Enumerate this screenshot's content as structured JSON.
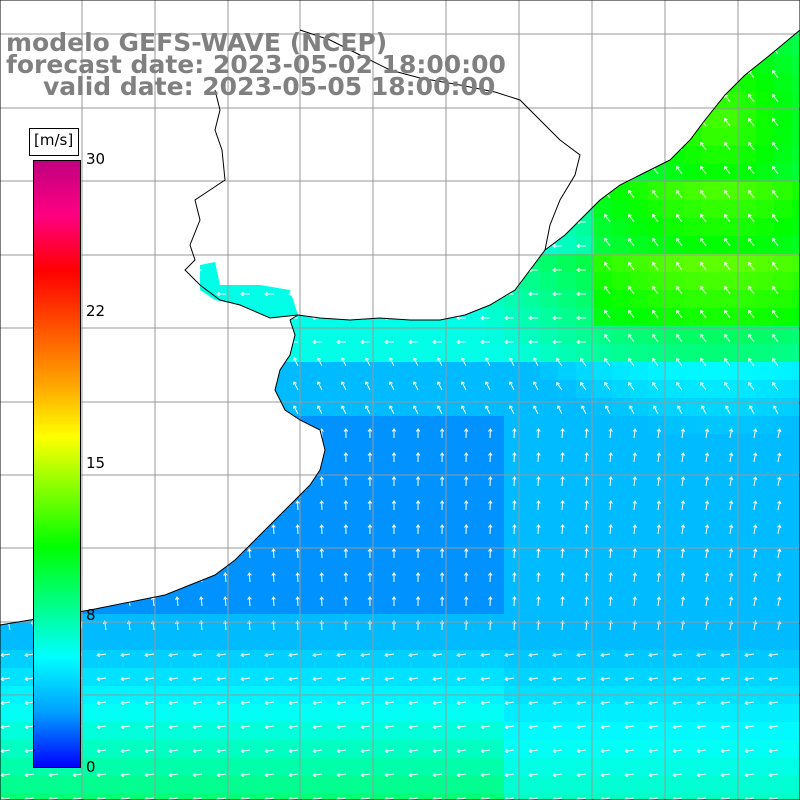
{
  "title": {
    "line1": "modelo GEFS-WAVE (NCEP)",
    "line2": "forecast date: 2023-05-02 18:00:00",
    "line3": "valid date: 2023-05-05 18:00:00"
  },
  "colorbar": {
    "unit": "[m/s]",
    "ticks": [
      "30",
      "22",
      "15",
      "8",
      "0"
    ],
    "tick_values": [
      30,
      22,
      15,
      8,
      0
    ],
    "min": 0,
    "max": 30,
    "colors": [
      "#0000ff",
      "#00a0ff",
      "#00ffff",
      "#00ff80",
      "#00ff00",
      "#80ff00",
      "#ffff00",
      "#ffa000",
      "#ff5000",
      "#ff0000",
      "#ff0080",
      "#c00080"
    ]
  },
  "map": {
    "ocean_color": "#0040ff",
    "land_color": "#ffffff",
    "coastline_color": "#000000",
    "gridline_color": "#a0a0a0",
    "arrow_color": "#ffffff"
  }
}
